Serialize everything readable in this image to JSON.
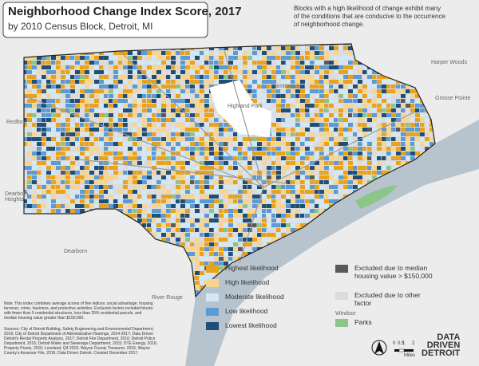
{
  "header": {
    "title": "Neighborhood Change Index Score, 2017",
    "subtitle": "by 2010 Census Block, Detroit, MI"
  },
  "annotation": "Blocks with a high likelihood of change exhibit many of the conditions that are conducive to the occurrence of neighborhood change.",
  "places": [
    "Redford",
    "Dearborn Heights",
    "Dearborn",
    "Highland Park",
    "Hamtramck",
    "Harper Woods",
    "Grosse Pointe",
    "River Rouge",
    "Windsor"
  ],
  "legend": [
    {
      "label": "Highest likelihood",
      "color": "#e9a21b"
    },
    {
      "label": "High likelihood",
      "color": "#f8d48e"
    },
    {
      "label": "Moderate likelihood",
      "color": "#d4e7f4"
    },
    {
      "label": "Low likelihood",
      "color": "#5b9bd5"
    },
    {
      "label": "Lowest likelihood",
      "color": "#1f4e79"
    },
    {
      "label": "Excluded due to median housing value > $150,000",
      "color": "#5a5a5a"
    },
    {
      "label": "Excluded due to other factor",
      "color": "#dcdcdc"
    },
    {
      "label": "Parks",
      "color": "#8cc58a"
    }
  ],
  "note": "Note: This index combines average scores of five indices: social advantage, housing turnover, crime, business, and protective activities. Exclusion factors included blocks with fewer than 5 residential structures, less than 25% residential parcels, and median housing value greater than $150,000.",
  "sources": "Sources: City of Detroit Building, Safety Engineering and Environmental Department, 2016; City of Detroit Department of Administrative Hearings, 2014-2017; Data Driven Detroit's Rental Property Analysis, 2017; Detroit Fire Department, 2016; Detroit Police Department, 2016; Detroit Water and Sewerage Department, 2015; DTE Energy, 2016; Property Praxis, 2016; Loveland, Q4 2016; Wayne County Treasurer, 2016; Wayne County's Assessor File, 2016; Data Driven Detroit. Created December 2017.",
  "scale": {
    "ticks": [
      "0",
      "0.5",
      "1",
      "2"
    ],
    "unit": "Miles"
  },
  "logo": [
    "DATA",
    "DRIVEN",
    "DETROIT"
  ]
}
